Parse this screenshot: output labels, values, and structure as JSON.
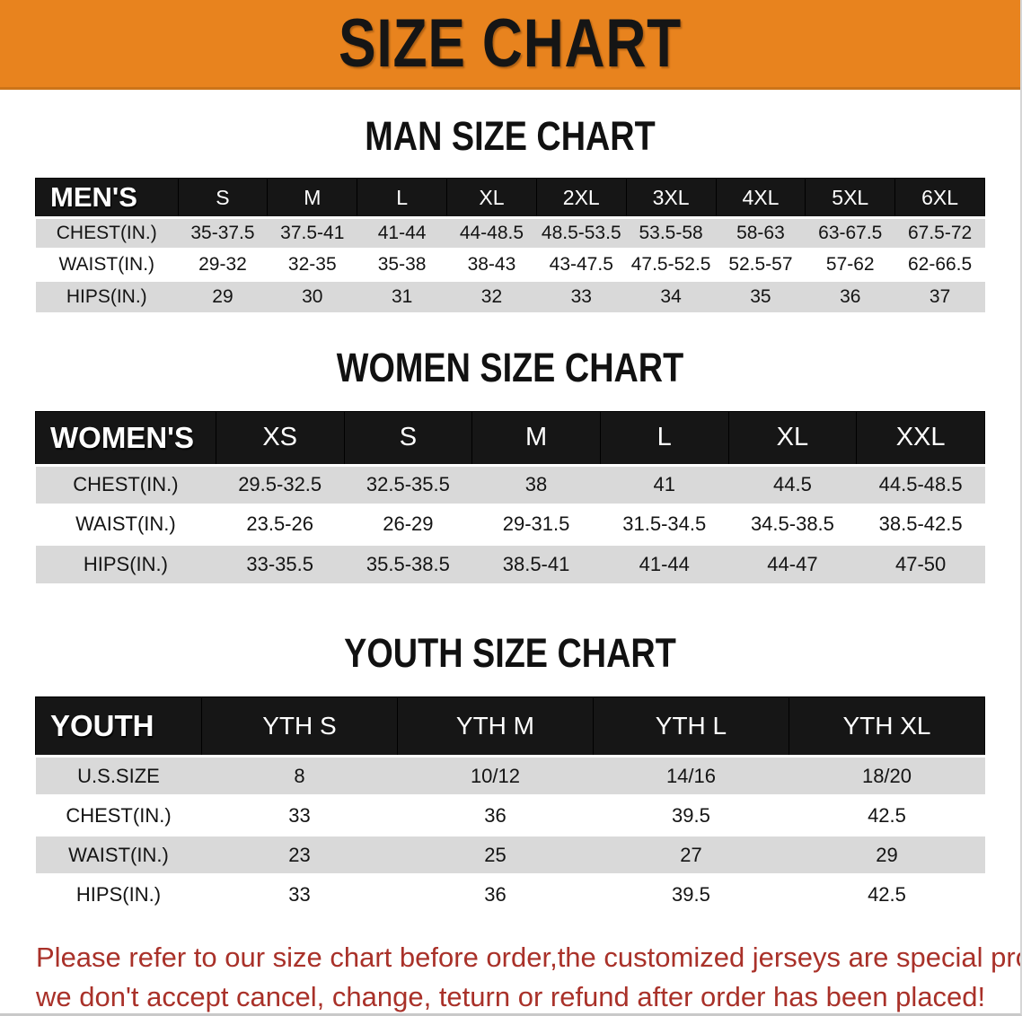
{
  "banner": {
    "title": "SIZE CHART"
  },
  "colors": {
    "banner_bg": "#E8831E",
    "table_header_bg": "#161616",
    "table_header_text": "#FFFFFF",
    "row_alt_bg": "#D9D9D9",
    "disclaimer_red": "#A93129",
    "heading_text": "#111111"
  },
  "sections": [
    {
      "key": "men",
      "heading": "MAN SIZE CHART",
      "header_label": "MEN'S",
      "sizes": [
        "S",
        "M",
        "L",
        "XL",
        "2XL",
        "3XL",
        "4XL",
        "5XL",
        "6XL"
      ],
      "rows": [
        {
          "label": "CHEST(IN.)",
          "values": [
            "35-37.5",
            "37.5-41",
            "41-44",
            "44-48.5",
            "48.5-53.5",
            "53.5-58",
            "58-63",
            "63-67.5",
            "67.5-72"
          ]
        },
        {
          "label": "WAIST(IN.)",
          "values": [
            "29-32",
            "32-35",
            "35-38",
            "38-43",
            "43-47.5",
            "47.5-52.5",
            "52.5-57",
            "57-62",
            "62-66.5"
          ]
        },
        {
          "label": "HIPS(IN.)",
          "values": [
            "29",
            "30",
            "31",
            "32",
            "33",
            "34",
            "35",
            "36",
            "37"
          ]
        }
      ]
    },
    {
      "key": "women",
      "heading": "WOMEN SIZE CHART",
      "header_label": "WOMEN'S",
      "sizes": [
        "XS",
        "S",
        "M",
        "L",
        "XL",
        "XXL"
      ],
      "rows": [
        {
          "label": "CHEST(IN.)",
          "values": [
            "29.5-32.5",
            "32.5-35.5",
            "38",
            "41",
            "44.5",
            "44.5-48.5"
          ]
        },
        {
          "label": "WAIST(IN.)",
          "values": [
            "23.5-26",
            "26-29",
            "29-31.5",
            "31.5-34.5",
            "34.5-38.5",
            "38.5-42.5"
          ]
        },
        {
          "label": "HIPS(IN.)",
          "values": [
            "33-35.5",
            "35.5-38.5",
            "38.5-41",
            "41-44",
            "44-47",
            "47-50"
          ]
        }
      ]
    },
    {
      "key": "youth",
      "heading": "YOUTH SIZE CHART",
      "header_label": "YOUTH",
      "sizes": [
        "YTH S",
        "YTH M",
        "YTH L",
        "YTH XL"
      ],
      "rows": [
        {
          "label": "U.S.SIZE",
          "values": [
            "8",
            "10/12",
            "14/16",
            "18/20"
          ]
        },
        {
          "label": "CHEST(IN.)",
          "values": [
            "33",
            "36",
            "39.5",
            "42.5"
          ]
        },
        {
          "label": "WAIST(IN.)",
          "values": [
            "23",
            "25",
            "27",
            "29"
          ]
        },
        {
          "label": "HIPS(IN.)",
          "values": [
            "33",
            "36",
            "39.5",
            "42.5"
          ]
        }
      ]
    }
  ],
  "disclaimer": {
    "line1": "Please refer to our size chart before order,the customized jerseys are special products,",
    "line2": "we don't accept cancel, change, teturn or refund after order has been placed!"
  }
}
